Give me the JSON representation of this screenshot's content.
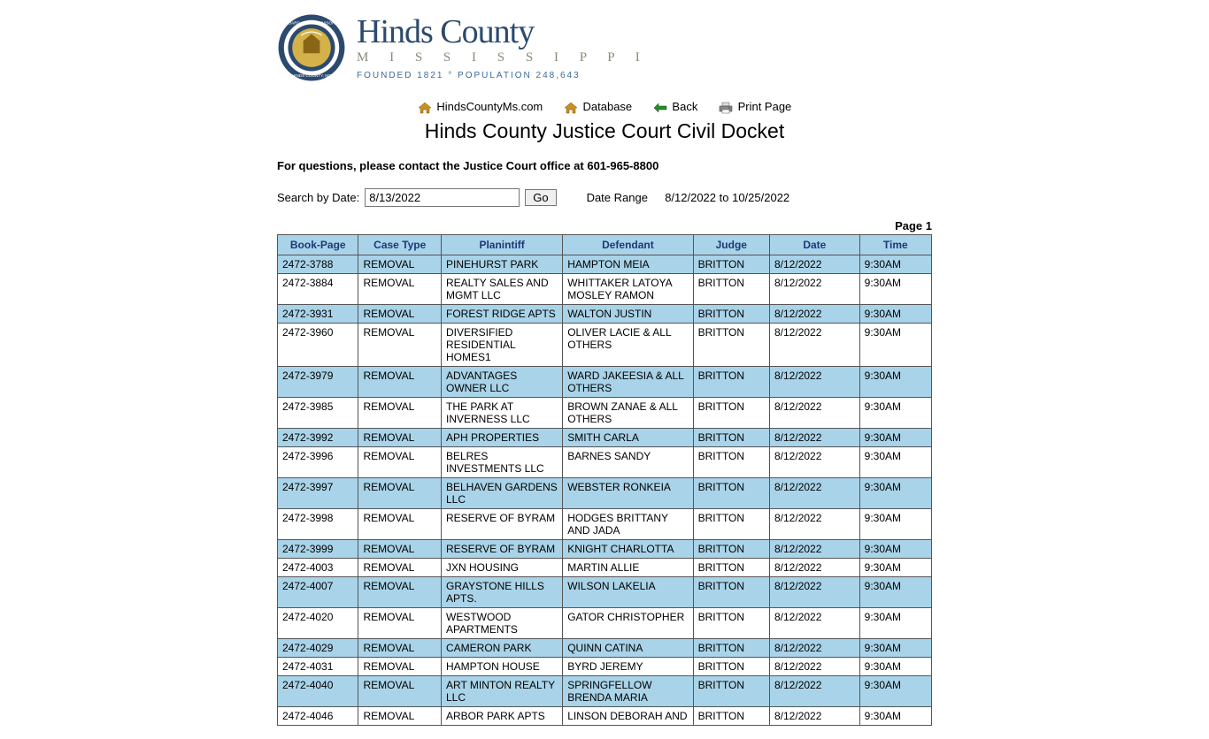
{
  "header": {
    "county_name": "Hinds County",
    "state_name": "M I S S I S S I P P I",
    "tagline": "FOUNDED 1821 ° POPULATION 248,643"
  },
  "nav": {
    "home": "HindsCountyMs.com",
    "database": "Database",
    "back": "Back",
    "print": "Print Page"
  },
  "page_title": "Hinds County Justice Court Civil Docket",
  "contact_line": "For questions, please contact the Justice Court office at 601-965-8800",
  "search": {
    "label": "Search by Date:",
    "value": "8/13/2022",
    "go": "Go",
    "date_range_label": "Date Range",
    "date_range_value": "8/12/2022 to 10/25/2022"
  },
  "page_indicator": "Page 1",
  "columns": [
    "Book-Page",
    "Case Type",
    "Planintiff",
    "Defendant",
    "Judge",
    "Date",
    "Time"
  ],
  "rows": [
    [
      "2472-3788",
      "REMOVAL",
      "PINEHURST PARK",
      "HAMPTON MEIA",
      "BRITTON",
      "8/12/2022",
      "9:30AM"
    ],
    [
      "2472-3884",
      "REMOVAL",
      "REALTY SALES AND MGMT LLC",
      "WHITTAKER LATOYA MOSLEY RAMON",
      "BRITTON",
      "8/12/2022",
      "9:30AM"
    ],
    [
      "2472-3931",
      "REMOVAL",
      "FOREST RIDGE APTS",
      "WALTON JUSTIN",
      "BRITTON",
      "8/12/2022",
      "9:30AM"
    ],
    [
      "2472-3960",
      "REMOVAL",
      "DIVERSIFIED RESIDENTIAL HOMES1",
      "OLIVER LACIE & ALL OTHERS",
      "BRITTON",
      "8/12/2022",
      "9:30AM"
    ],
    [
      "2472-3979",
      "REMOVAL",
      "ADVANTAGES OWNER LLC",
      "WARD JAKEESIA & ALL OTHERS",
      "BRITTON",
      "8/12/2022",
      "9:30AM"
    ],
    [
      "2472-3985",
      "REMOVAL",
      "THE PARK AT INVERNESS LLC",
      "BROWN ZANAE & ALL OTHERS",
      "BRITTON",
      "8/12/2022",
      "9:30AM"
    ],
    [
      "2472-3992",
      "REMOVAL",
      "APH PROPERTIES",
      "SMITH CARLA",
      "BRITTON",
      "8/12/2022",
      "9:30AM"
    ],
    [
      "2472-3996",
      "REMOVAL",
      "BELRES INVESTMENTS LLC",
      "BARNES SANDY",
      "BRITTON",
      "8/12/2022",
      "9:30AM"
    ],
    [
      "2472-3997",
      "REMOVAL",
      "BELHAVEN GARDENS LLC",
      "WEBSTER RONKEIA",
      "BRITTON",
      "8/12/2022",
      "9:30AM"
    ],
    [
      "2472-3998",
      "REMOVAL",
      "RESERVE OF BYRAM",
      "HODGES BRITTANY AND JADA",
      "BRITTON",
      "8/12/2022",
      "9:30AM"
    ],
    [
      "2472-3999",
      "REMOVAL",
      "RESERVE OF BYRAM",
      "KNIGHT CHARLOTTA",
      "BRITTON",
      "8/12/2022",
      "9:30AM"
    ],
    [
      "2472-4003",
      "REMOVAL",
      "JXN HOUSING",
      "MARTIN ALLIE",
      "BRITTON",
      "8/12/2022",
      "9:30AM"
    ],
    [
      "2472-4007",
      "REMOVAL",
      "GRAYSTONE HILLS APTS.",
      "WILSON LAKELIA",
      "BRITTON",
      "8/12/2022",
      "9:30AM"
    ],
    [
      "2472-4020",
      "REMOVAL",
      "WESTWOOD APARTMENTS",
      "GATOR CHRISTOPHER",
      "BRITTON",
      "8/12/2022",
      "9:30AM"
    ],
    [
      "2472-4029",
      "REMOVAL",
      "CAMERON PARK",
      "QUINN CATINA",
      "BRITTON",
      "8/12/2022",
      "9:30AM"
    ],
    [
      "2472-4031",
      "REMOVAL",
      "HAMPTON HOUSE",
      "BYRD JEREMY",
      "BRITTON",
      "8/12/2022",
      "9:30AM"
    ],
    [
      "2472-4040",
      "REMOVAL",
      "ART MINTON REALTY LLC",
      "SPRINGFELLOW BRENDA MARIA",
      "BRITTON",
      "8/12/2022",
      "9:30AM"
    ],
    [
      "2472-4046",
      "REMOVAL",
      "ARBOR PARK APTS",
      "LINSON DEBORAH AND",
      "BRITTON",
      "8/12/2022",
      "9:30AM"
    ]
  ],
  "colors": {
    "header_blue": "#a9d3e8",
    "border": "#555555",
    "link_text": "#1a3a7a"
  }
}
